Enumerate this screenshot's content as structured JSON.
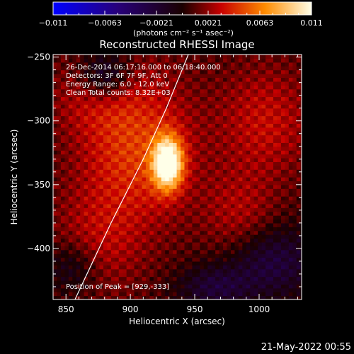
{
  "chart_data": {
    "type": "heatmap",
    "title": "Reconstructed RHESSI Image",
    "xlabel": "Heliocentric X (arcsec)",
    "ylabel": "Heliocentric Y (arcsec)",
    "xlim": [
      840,
      1033
    ],
    "ylim": [
      -440,
      -248
    ],
    "x_ticks": [
      850,
      900,
      950,
      1000
    ],
    "y_ticks": [
      -250,
      -300,
      -350,
      -400
    ],
    "colorbar": {
      "ticks": [
        "-0.011",
        "-0.0063",
        "-0.0021",
        "0.0021",
        "0.0063",
        "0.011"
      ],
      "range": [
        -0.011,
        0.011
      ],
      "units": "(photons cm⁻² s⁻¹ asec⁻²)"
    },
    "annotations": {
      "time_range": "26-Dec-2014 06:17:16.000 to 06:18:40.000",
      "detectors": "Detectors: 3F 6F 7F 9F, Att 0",
      "energy_range": "Energy Range: 6.0 - 12.0 keV",
      "clean_counts": "Clean    Total counts: 8.32E+03",
      "peak": "Position of Peak = [929,-333]"
    },
    "peak": {
      "x": 929,
      "y": -333,
      "value": 0.011
    },
    "sources": [
      {
        "x": 929,
        "y": -333,
        "sx": 8,
        "sy": 14,
        "amp": 0.0115
      },
      {
        "x": 905,
        "y": -320,
        "sx": 30,
        "sy": 40,
        "amp": 0.004
      },
      {
        "x": 1005,
        "y": -300,
        "sx": 25,
        "sy": 30,
        "amp": 0.0025
      },
      {
        "x": 985,
        "y": -375,
        "sx": 20,
        "sy": 25,
        "amp": 0.002
      },
      {
        "x": 875,
        "y": -395,
        "sx": 25,
        "sy": 30,
        "amp": 0.002
      },
      {
        "x": 870,
        "y": -280,
        "sx": 22,
        "sy": 20,
        "amp": 0.0018
      },
      {
        "x": 880,
        "y": -265,
        "sx": 14,
        "sy": 14,
        "amp": -0.004
      },
      {
        "x": 1010,
        "y": -410,
        "sx": 25,
        "sy": 20,
        "amp": -0.0035
      },
      {
        "x": 965,
        "y": -430,
        "sx": 20,
        "sy": 12,
        "amp": -0.003
      },
      {
        "x": 855,
        "y": -415,
        "sx": 15,
        "sy": 15,
        "amp": -0.0025
      }
    ],
    "limb": [
      [
        857,
        -440
      ],
      [
        885,
        -380
      ],
      [
        910,
        -330
      ],
      [
        928,
        -290
      ],
      [
        945,
        -248
      ]
    ]
  },
  "footer": {
    "date": "21-May-2022 00:55"
  }
}
